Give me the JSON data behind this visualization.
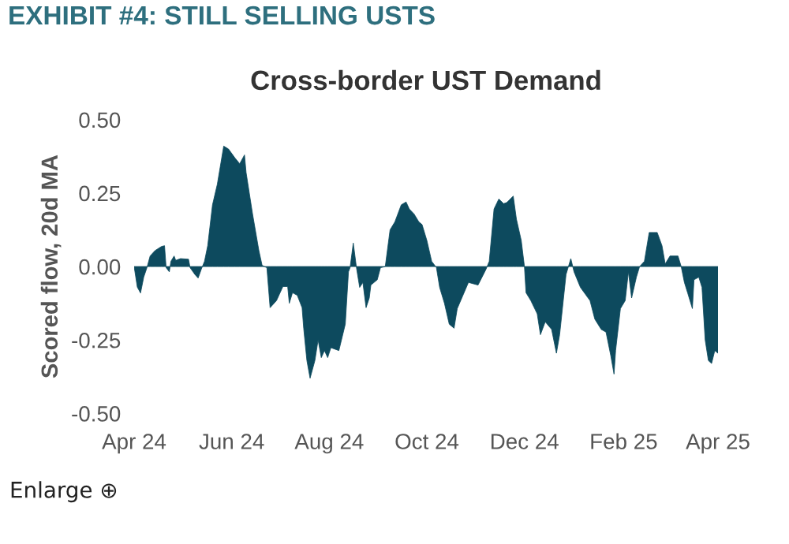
{
  "chart_data": {
    "type": "area",
    "title": "EXHIBIT #4: STILL SELLING USTS",
    "subtitle": "Cross-border UST Demand",
    "ylabel": "Scored flow, 20d MA",
    "annotations": [
      "Enlarge ⊕"
    ],
    "x": [
      "2024-04-01",
      "2024-04-03",
      "2024-04-05",
      "2024-04-07",
      "2024-04-09",
      "2024-04-11",
      "2024-04-14",
      "2024-04-18",
      "2024-04-20",
      "2024-04-21",
      "2024-04-23",
      "2024-04-24",
      "2024-04-26",
      "2024-04-27",
      "2024-04-30",
      "2024-05-05",
      "2024-05-06",
      "2024-05-09",
      "2024-05-11",
      "2024-05-13",
      "2024-05-15",
      "2024-05-17",
      "2024-05-20",
      "2024-05-23",
      "2024-05-27",
      "2024-05-30",
      "2024-06-03",
      "2024-06-06",
      "2024-06-09",
      "2024-06-10",
      "2024-06-14",
      "2024-06-18",
      "2024-06-20",
      "2024-06-23",
      "2024-06-25",
      "2024-06-29",
      "2024-07-03",
      "2024-07-06",
      "2024-07-07",
      "2024-07-09",
      "2024-07-12",
      "2024-07-15",
      "2024-07-16",
      "2024-07-18",
      "2024-07-20",
      "2024-07-23",
      "2024-07-25",
      "2024-07-27",
      "2024-07-29",
      "2024-07-31",
      "2024-08-02",
      "2024-08-07",
      "2024-08-11",
      "2024-08-13",
      "2024-08-14",
      "2024-08-16",
      "2024-08-18",
      "2024-08-20",
      "2024-08-22",
      "2024-08-24",
      "2024-08-26",
      "2024-08-27",
      "2024-08-31",
      "2024-09-02",
      "2024-09-05",
      "2024-09-08",
      "2024-09-11",
      "2024-09-15",
      "2024-09-18",
      "2024-09-20",
      "2024-09-23",
      "2024-09-26",
      "2024-09-28",
      "2024-10-01",
      "2024-10-04",
      "2024-10-07",
      "2024-10-09",
      "2024-10-12",
      "2024-10-15",
      "2024-10-18",
      "2024-10-20",
      "2024-10-27",
      "2024-11-02",
      "2024-11-07",
      "2024-11-09",
      "2024-11-12",
      "2024-11-15",
      "2024-11-18",
      "2024-11-20",
      "2024-11-24",
      "2024-11-26",
      "2024-11-29",
      "2024-12-01",
      "2024-12-02",
      "2024-12-05",
      "2024-12-09",
      "2024-12-11",
      "2024-12-14",
      "2024-12-18",
      "2024-12-21",
      "2024-12-23",
      "2024-12-27",
      "2024-12-30",
      "2025-01-01",
      "2025-01-05",
      "2025-01-11",
      "2025-01-14",
      "2025-01-18",
      "2025-01-21",
      "2025-01-24",
      "2025-01-26",
      "2025-01-27",
      "2025-01-30",
      "2025-02-02",
      "2025-02-04",
      "2025-02-06",
      "2025-02-09",
      "2025-02-11",
      "2025-02-14",
      "2025-02-17",
      "2025-02-20",
      "2025-02-22",
      "2025-02-25",
      "2025-02-27",
      "2025-03-02",
      "2025-03-07",
      "2025-03-09",
      "2025-03-11",
      "2025-03-13",
      "2025-03-16",
      "2025-03-17",
      "2025-03-20",
      "2025-03-22",
      "2025-03-24",
      "2025-03-26",
      "2025-03-28",
      "2025-03-30",
      "2025-04-01"
    ],
    "series": [
      {
        "color": "#0d4a5e",
        "values": [
          0,
          -0.07,
          -0.09,
          -0.036,
          -0.004,
          0.036,
          0.054,
          0.068,
          0.071,
          -0.004,
          -0.018,
          0.018,
          0.036,
          0.021,
          0.027,
          0.025,
          -0.004,
          -0.027,
          -0.039,
          -0.009,
          0.018,
          0.071,
          0.21,
          0.28,
          0.41,
          0.4,
          0.37,
          0.35,
          0.38,
          0.32,
          0.18,
          0.054,
          0.004,
          -0.004,
          -0.14,
          -0.116,
          -0.068,
          -0.068,
          -0.125,
          -0.089,
          -0.098,
          -0.14,
          -0.21,
          -0.32,
          -0.38,
          -0.32,
          -0.25,
          -0.31,
          -0.286,
          -0.31,
          -0.276,
          -0.286,
          -0.196,
          -0.018,
          -0.004,
          0.08,
          -0.004,
          -0.071,
          -0.054,
          -0.14,
          -0.107,
          -0.063,
          -0.045,
          -0.004,
          0,
          0.125,
          0.152,
          0.21,
          0.22,
          0.196,
          0.179,
          0.152,
          0.143,
          0.089,
          0.018,
          -0.004,
          -0.071,
          -0.125,
          -0.196,
          -0.21,
          -0.143,
          -0.054,
          -0.063,
          -0.009,
          0.018,
          0.196,
          0.23,
          0.214,
          0.218,
          0.24,
          0.161,
          0.089,
          0,
          -0.089,
          -0.116,
          -0.161,
          -0.232,
          -0.188,
          -0.214,
          -0.295,
          -0.232,
          -0.027,
          0.027,
          -0.018,
          -0.071,
          -0.116,
          -0.179,
          -0.214,
          -0.223,
          -0.304,
          -0.366,
          -0.286,
          -0.143,
          -0.116,
          -0.018,
          -0.107,
          -0.036,
          0,
          0.018,
          0.116,
          0.116,
          0.116,
          0.071,
          0.009,
          0.036,
          0.036,
          0,
          -0.054,
          -0.089,
          -0.143,
          -0.045,
          -0.036,
          -0.071,
          -0.25,
          -0.32,
          -0.33,
          -0.286,
          -0.295
        ]
      }
    ],
    "xlim": [
      "2024-04-01",
      "2025-04-01"
    ],
    "xticks": [
      {
        "value": "2024-04-01",
        "label": "Apr 24"
      },
      {
        "value": "2024-06-01",
        "label": "Jun 24"
      },
      {
        "value": "2024-08-01",
        "label": "Aug 24"
      },
      {
        "value": "2024-10-01",
        "label": "Oct 24"
      },
      {
        "value": "2024-12-01",
        "label": "Dec 24"
      },
      {
        "value": "2025-02-01",
        "label": "Feb 25"
      },
      {
        "value": "2025-04-01",
        "label": "Apr 25"
      }
    ],
    "ylim": [
      -0.5,
      0.5
    ],
    "yticks": [
      {
        "value": -0.5,
        "label": "-0.50"
      },
      {
        "value": -0.25,
        "label": "-0.25"
      },
      {
        "value": 0,
        "label": "0.00"
      },
      {
        "value": 0.25,
        "label": "0.25"
      },
      {
        "value": 0.5,
        "label": "0.50"
      }
    ],
    "grid": false,
    "legend": false
  }
}
